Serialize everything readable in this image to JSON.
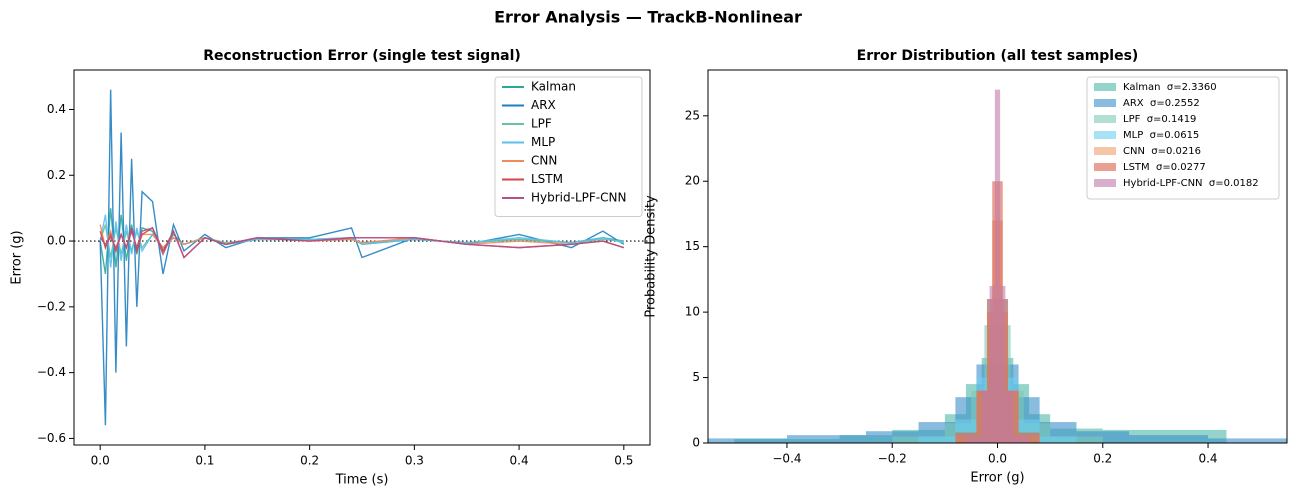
{
  "title": "Error Analysis — TrackB-Nonlinear",
  "chart_data": [
    {
      "type": "line",
      "title": "Reconstruction Error (single test signal)",
      "x_label": "Time (s)",
      "y_label": "Error (g)",
      "x": [
        0,
        0.005,
        0.01,
        0.015,
        0.02,
        0.025,
        0.03,
        0.035,
        0.04,
        0.05,
        0.06,
        0.07,
        0.08,
        0.1,
        0.12,
        0.15,
        0.2,
        0.24,
        0.25,
        0.3,
        0.35,
        0.4,
        0.45,
        0.48,
        0.5
      ],
      "series": [
        {
          "name": "Kalman",
          "color": "#2ca89a",
          "values": [
            0,
            -0.1,
            0.1,
            -0.08,
            0.08,
            -0.06,
            0.05,
            -0.04,
            0.04,
            0.03,
            -0.03,
            0.02,
            -0.01,
            0.01,
            -0.01,
            0.005,
            0.005,
            0.01,
            -0.01,
            0.005,
            -0.005,
            0.005,
            -0.005,
            0.01,
            0
          ]
        },
        {
          "name": "ARX",
          "color": "#1f7fc0",
          "values": [
            0,
            -0.56,
            0.46,
            -0.4,
            0.33,
            -0.32,
            0.25,
            -0.2,
            0.15,
            0.12,
            -0.1,
            0.05,
            -0.03,
            0.02,
            -0.02,
            0.01,
            0.01,
            0.04,
            -0.05,
            0.01,
            -0.01,
            0.02,
            -0.02,
            0.03,
            -0.01
          ]
        },
        {
          "name": "LPF",
          "color": "#66c2a5",
          "values": [
            0,
            0.05,
            -0.05,
            0.04,
            -0.04,
            0.03,
            -0.03,
            0.03,
            -0.02,
            0.02,
            -0.02,
            0.01,
            -0.01,
            0.01,
            -0.005,
            0.005,
            0.005,
            0.005,
            -0.005,
            0.005,
            -0.005,
            0.005,
            -0.005,
            0.005,
            0
          ]
        },
        {
          "name": "MLP",
          "color": "#5bc0eb",
          "values": [
            0,
            0.08,
            -0.08,
            0.06,
            -0.06,
            0.05,
            -0.04,
            0.04,
            -0.03,
            0.02,
            -0.02,
            0.01,
            -0.01,
            0.01,
            -0.01,
            0.005,
            0.005,
            0.01,
            -0.01,
            0.005,
            -0.005,
            0.01,
            -0.005,
            0.01,
            -0.005
          ]
        },
        {
          "name": "CNN",
          "color": "#f08a5d",
          "values": [
            0.05,
            -0.02,
            0.03,
            -0.03,
            0.02,
            -0.02,
            0.03,
            -0.02,
            0.02,
            0.02,
            -0.02,
            0.01,
            -0.01,
            0.01,
            -0.01,
            0.01,
            0,
            0.005,
            -0.005,
            0.01,
            -0.01,
            0,
            -0.01,
            0,
            -0.02
          ]
        },
        {
          "name": "LSTM",
          "color": "#d64541",
          "values": [
            0.03,
            -0.02,
            0.02,
            -0.03,
            0.02,
            -0.02,
            0.04,
            -0.03,
            0.02,
            0.04,
            -0.03,
            0.03,
            -0.05,
            0.01,
            -0.01,
            0.01,
            0,
            0.01,
            0.01,
            0.01,
            -0.01,
            -0.02,
            -0.01,
            0,
            -0.02
          ]
        },
        {
          "name": "Hybrid-LPF-CNN",
          "color": "#b5508a",
          "values": [
            0.01,
            -0.01,
            0.01,
            -0.02,
            0.02,
            -0.02,
            0.03,
            -0.02,
            0.03,
            0.04,
            -0.04,
            0.03,
            -0.05,
            0.01,
            -0.01,
            0.01,
            0,
            0.01,
            0.01,
            0.01,
            -0.01,
            -0.02,
            -0.01,
            0,
            -0.02
          ]
        }
      ],
      "reference_line": 0,
      "xlim": [
        -0.025,
        0.525
      ],
      "xticks": [
        {
          "value": 0,
          "label": "0.0"
        },
        0.1,
        0.2,
        0.3,
        0.4,
        0.5
      ],
      "ylim": [
        -0.62,
        0.52
      ],
      "yticks": [
        {
          "value": -0.6,
          "label": "−0.6"
        },
        {
          "value": -0.4,
          "label": "−0.4"
        },
        {
          "value": -0.2,
          "label": "−0.2"
        },
        {
          "value": 0,
          "label": "0.0"
        },
        0.2,
        0.4
      ],
      "legend": "upper right"
    },
    {
      "type": "histogram",
      "title": "Error Distribution (all test samples)",
      "x_label": "Error (g)",
      "y_label": "Probability Density",
      "series": [
        {
          "name": "Kalman  σ=2.3360",
          "color": "#4fb7a9",
          "bins": [
            -0.5,
            -0.3,
            -0.2,
            -0.1,
            -0.06,
            -0.03,
            0,
            0.03,
            0.06,
            0.1,
            0.2,
            0.435
          ],
          "values": [
            0.3,
            0.6,
            1.0,
            2.2,
            4.5,
            6.5,
            6.5,
            4.5,
            2.2,
            1.1,
            1.0
          ]
        },
        {
          "name": "ARX  σ=0.2552",
          "color": "#3a8fc9",
          "bins": [
            -0.55,
            -0.4,
            -0.25,
            -0.15,
            -0.08,
            -0.04,
            0,
            0.04,
            0.08,
            0.15,
            0.25,
            0.4,
            0.55
          ],
          "values": [
            0.35,
            0.6,
            0.9,
            1.6,
            3.5,
            6,
            6,
            3.5,
            1.6,
            0.9,
            0.6,
            0.35
          ]
        },
        {
          "name": "LPF  σ=0.1419",
          "color": "#7fc8b8",
          "bins": [
            -0.2,
            -0.1,
            -0.05,
            -0.025,
            0,
            0.025,
            0.05,
            0.1,
            0.2
          ],
          "values": [
            0.5,
            1.5,
            4,
            9,
            9,
            4,
            1.5,
            0.5
          ]
        },
        {
          "name": "MLP  σ=0.0615",
          "color": "#6ecff0",
          "bins": [
            -0.15,
            -0.08,
            -0.04,
            -0.02,
            0,
            0.02,
            0.04,
            0.08,
            0.15
          ],
          "values": [
            0.5,
            1.8,
            5,
            11,
            11,
            5,
            1.8,
            0.5
          ]
        },
        {
          "name": "CNN  σ=0.0216",
          "color": "#f0a070",
          "bins": [
            -0.08,
            -0.04,
            -0.02,
            -0.01,
            0,
            0.01,
            0.02,
            0.04,
            0.08
          ],
          "values": [
            0.6,
            4,
            10,
            17,
            17,
            10,
            4,
            0.6
          ]
        },
        {
          "name": "LSTM  σ=0.0277",
          "color": "#d9604a",
          "bins": [
            -0.08,
            -0.04,
            -0.02,
            -0.01,
            0,
            0.01,
            0.02,
            0.04,
            0.08
          ],
          "values": [
            0.8,
            4,
            11,
            20,
            20,
            11,
            4,
            0.8
          ]
        },
        {
          "name": "Hybrid-LPF-CNN  σ=0.0182",
          "color": "#c27aa8",
          "bins": [
            -0.06,
            -0.03,
            -0.015,
            -0.005,
            0,
            0.005,
            0.015,
            0.03,
            0.06
          ],
          "values": [
            0.5,
            4,
            12,
            27,
            27,
            12,
            4,
            0.5
          ]
        }
      ],
      "xlim": [
        -0.55,
        0.55
      ],
      "xticks": [
        {
          "value": -0.4,
          "label": "−0.4"
        },
        {
          "value": -0.2,
          "label": "−0.2"
        },
        {
          "value": 0,
          "label": "0.0"
        },
        0.2,
        0.4
      ],
      "ylim": [
        0,
        28.5
      ],
      "yticks": [
        0,
        5,
        10,
        15,
        20,
        25
      ],
      "legend": "upper right"
    }
  ]
}
